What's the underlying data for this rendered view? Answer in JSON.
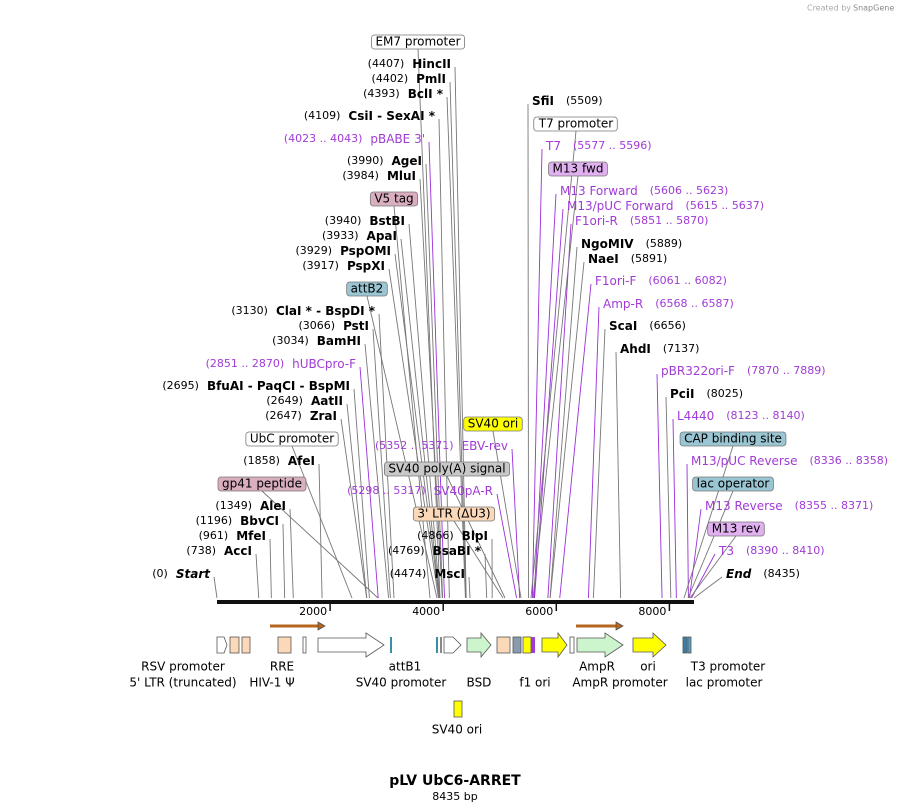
{
  "brand": {
    "created_by": "Created by",
    "name": "SnapGene"
  },
  "title": "pLV UbC6-ARRET",
  "subtitle": "8435 bp",
  "ruler": {
    "ticks": [
      2000,
      4000,
      6000,
      8000
    ]
  },
  "sites": [
    {
      "pos": "(4407)",
      "name": "HincII"
    },
    {
      "pos": "(4402)",
      "name": "PmlI"
    },
    {
      "pos": "(4393)",
      "name": "BclI *"
    },
    {
      "pos": "(4109)",
      "name": "CsiI  -  SexAI *"
    },
    {
      "pos": "(3990)",
      "name": "AgeI"
    },
    {
      "pos": "(3984)",
      "name": "MluI"
    },
    {
      "pos": "(3940)",
      "name": "BstBI"
    },
    {
      "pos": "(3933)",
      "name": "ApaI"
    },
    {
      "pos": "(3929)",
      "name": "PspOMI"
    },
    {
      "pos": "(3917)",
      "name": "PspXI"
    },
    {
      "pos": "(3130)",
      "name": "ClaI *  -  BspDI *"
    },
    {
      "pos": "(3066)",
      "name": "PstI"
    },
    {
      "pos": "(3034)",
      "name": "BamHI"
    },
    {
      "pos": "(2695)",
      "name": "BfuAI  -  PaqCI  -  BspMI"
    },
    {
      "pos": "(2649)",
      "name": "AatII"
    },
    {
      "pos": "(2647)",
      "name": "ZraI"
    },
    {
      "pos": "(1858)",
      "name": "AfeI"
    },
    {
      "pos": "(1349)",
      "name": "AleI"
    },
    {
      "pos": "(1196)",
      "name": "BbvCI"
    },
    {
      "pos": "(961)",
      "name": "MfeI"
    },
    {
      "pos": "(738)",
      "name": "AccI"
    },
    {
      "pos": "(4866)",
      "name": "BlpI"
    },
    {
      "pos": "(4769)",
      "name": "BsaBI *"
    },
    {
      "pos": "(4474)",
      "name": "MscI"
    },
    {
      "pos": "(5509)",
      "name": "SfiI"
    },
    {
      "pos": "(5889)",
      "name": "NgoMIV"
    },
    {
      "pos": "(5891)",
      "name": "NaeI"
    },
    {
      "pos": "(6656)",
      "name": "ScaI"
    },
    {
      "pos": "(7137)",
      "name": "AhdI"
    },
    {
      "pos": "(8025)",
      "name": "PciI"
    }
  ],
  "primers": [
    {
      "pos": "(4023 .. 4043)",
      "name": "pBABE 3'"
    },
    {
      "pos": "(2851 .. 2870)",
      "name": "hUBCpro-F"
    },
    {
      "pos": "(5352 .. 5371)",
      "name": "EBV-rev"
    },
    {
      "pos": "(5298 .. 5317)",
      "name": "SV40pA-R"
    },
    {
      "pos": "(5577 .. 5596)",
      "name": "T7"
    },
    {
      "pos": "(5606 .. 5623)",
      "name": "M13 Forward"
    },
    {
      "pos": "(5615 .. 5637)",
      "name": "M13/pUC Forward"
    },
    {
      "pos": "(5851 .. 5870)",
      "name": "F1ori-R"
    },
    {
      "pos": "(6061 .. 6082)",
      "name": "F1ori-F"
    },
    {
      "pos": "(6568 .. 6587)",
      "name": "Amp-R"
    },
    {
      "pos": "(7870 .. 7889)",
      "name": "pBR322ori-F"
    },
    {
      "pos": "(8123 .. 8140)",
      "name": "L4440"
    },
    {
      "pos": "(8336 .. 8358)",
      "name": "M13/pUC Reverse"
    },
    {
      "pos": "(8355 .. 8371)",
      "name": "M13 Reverse"
    },
    {
      "pos": "(8390 .. 8410)",
      "name": "T3"
    }
  ],
  "features": [
    {
      "name": "EM7 promoter"
    },
    {
      "name": "V5 tag"
    },
    {
      "name": "attB2"
    },
    {
      "name": "UbC promoter"
    },
    {
      "name": "gp41 peptide"
    },
    {
      "name": "SV40 ori"
    },
    {
      "name": "SV40 poly(A) signal"
    },
    {
      "name": "3' LTR (ΔU3)"
    },
    {
      "name": "T7 promoter"
    },
    {
      "name": "M13 fwd"
    },
    {
      "name": "CAP binding site"
    },
    {
      "name": "lac operator"
    },
    {
      "name": "M13 rev"
    }
  ],
  "ends": [
    {
      "pos": "(0)",
      "name": "Start"
    },
    {
      "pos": "(8435)",
      "name": "End"
    }
  ],
  "map_features": [
    {
      "name": "RSV promoter"
    },
    {
      "name": "5' LTR (truncated)"
    },
    {
      "name": "RRE"
    },
    {
      "name": "HIV-1 Ψ"
    },
    {
      "name": "attB1"
    },
    {
      "name": "SV40 promoter"
    },
    {
      "name": "BSD"
    },
    {
      "name": "f1 ori"
    },
    {
      "name": "AmpR"
    },
    {
      "name": "AmpR promoter"
    },
    {
      "name": "ori"
    },
    {
      "name": "T3 promoter"
    },
    {
      "name": "lac promoter"
    },
    {
      "name": "SV40 ori"
    }
  ]
}
